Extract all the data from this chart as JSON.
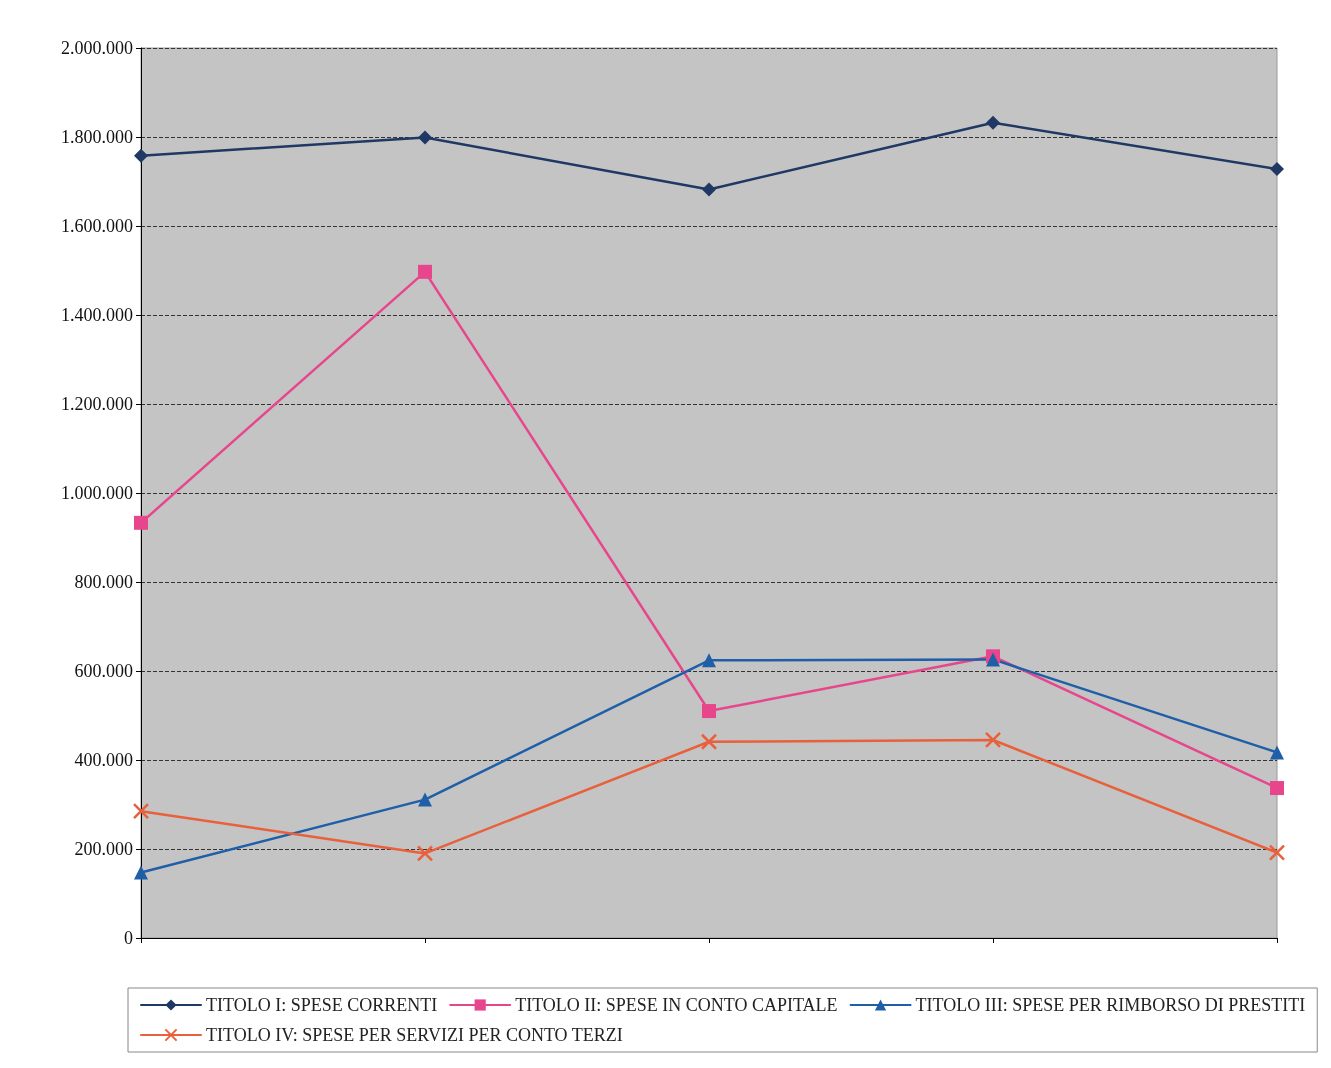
{
  "chart_data": {
    "type": "line",
    "categories": [
      null,
      null,
      null,
      null,
      null
    ],
    "series": [
      {
        "name": "TITOLO I: SPESE CORRENTI",
        "color": "#1f3864",
        "marker": "diamond",
        "values": [
          1758000,
          1799000,
          1682000,
          1832000,
          1728000
        ]
      },
      {
        "name": "TITOLO II: SPESE IN CONTO CAPITALE",
        "color": "#e8468c",
        "marker": "square",
        "values": [
          933000,
          1497000,
          510000,
          633000,
          337000
        ]
      },
      {
        "name": "TITOLO III: SPESE PER RIMBORSO DI PRESTITI",
        "color": "#1f5fa8",
        "marker": "triangle",
        "values": [
          147000,
          311000,
          624000,
          626000,
          417000
        ]
      },
      {
        "name": "TITOLO IV: SPESE PER SERVIZI PER CONTO TERZI",
        "color": "#e8603c",
        "marker": "cross",
        "values": [
          285000,
          190000,
          441000,
          445000,
          192000
        ]
      }
    ],
    "ylim": [
      0,
      2000000
    ],
    "yticks": [
      {
        "value": 0,
        "label": "0"
      },
      {
        "value": 200000,
        "label": "200.000"
      },
      {
        "value": 400000,
        "label": "400.000"
      },
      {
        "value": 600000,
        "label": "600.000"
      },
      {
        "value": 800000,
        "label": "800.000"
      },
      {
        "value": 1000000,
        "label": "1.000.000"
      },
      {
        "value": 1200000,
        "label": "1.200.000"
      },
      {
        "value": 1400000,
        "label": "1.400.000"
      },
      {
        "value": 1600000,
        "label": "1.600.000"
      },
      {
        "value": 1800000,
        "label": "1.800.000"
      },
      {
        "value": 2000000,
        "label": "2.000.000"
      }
    ],
    "grid": "y",
    "legend": "bottom",
    "tick_labels": "y"
  }
}
